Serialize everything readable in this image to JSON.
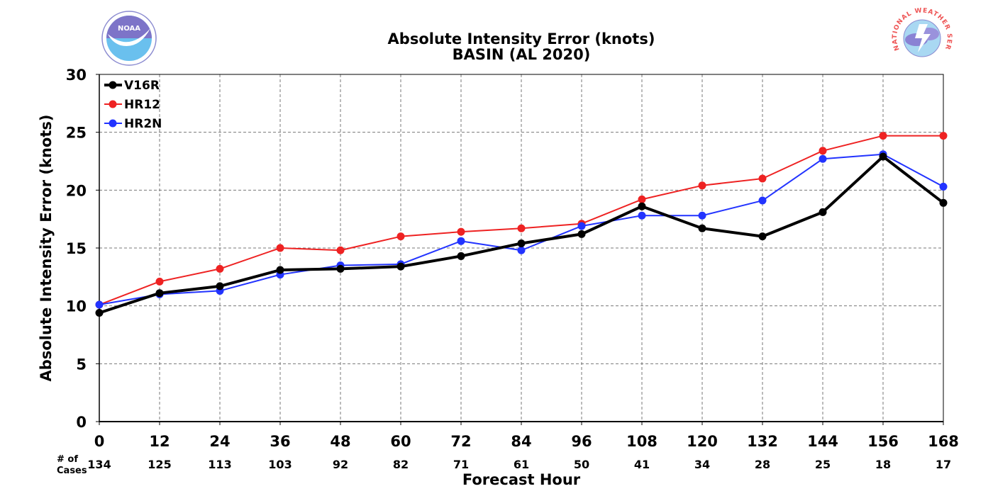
{
  "chart_data": {
    "type": "line",
    "title": "Absolute Intensity Error (knots)",
    "subtitle": "BASIN (AL 2020)",
    "xlabel": "Forecast Hour",
    "ylabel": "Absolute Intensity Error (knots)",
    "xlim": [
      0,
      168
    ],
    "ylim": [
      0,
      30
    ],
    "x_ticks": [
      0,
      12,
      24,
      36,
      48,
      60,
      72,
      84,
      96,
      108,
      120,
      132,
      144,
      156,
      168
    ],
    "y_ticks": [
      0,
      5,
      10,
      15,
      20,
      25,
      30
    ],
    "grid": true,
    "legend_position": "top-left",
    "cases_label_line1": "# of",
    "cases_label_line2": "Cases",
    "cases": [
      134,
      125,
      113,
      103,
      92,
      82,
      71,
      61,
      50,
      41,
      34,
      28,
      25,
      18,
      17
    ],
    "series": [
      {
        "name": "V16R",
        "color": "#000000",
        "values": [
          9.4,
          11.1,
          11.7,
          13.1,
          13.2,
          13.4,
          14.3,
          15.4,
          16.2,
          18.6,
          16.7,
          16.0,
          18.1,
          22.9,
          18.9
        ]
      },
      {
        "name": "HR12",
        "color": "#ee2222",
        "values": [
          10.1,
          12.1,
          13.2,
          15.0,
          14.8,
          16.0,
          16.4,
          16.7,
          17.1,
          19.2,
          20.4,
          21.0,
          23.4,
          24.7,
          24.7
        ]
      },
      {
        "name": "HR2N",
        "color": "#2233ff",
        "values": [
          10.1,
          11.0,
          11.3,
          12.7,
          13.5,
          13.6,
          15.6,
          14.8,
          16.9,
          17.8,
          17.8,
          19.1,
          22.7,
          23.1,
          20.3
        ]
      }
    ]
  },
  "logos": {
    "left": {
      "icon": "noaa-logo-icon",
      "text": "NOAA"
    },
    "right": {
      "icon": "nws-logo-icon",
      "text": "NATIONAL WEATHER SERVICE"
    }
  }
}
